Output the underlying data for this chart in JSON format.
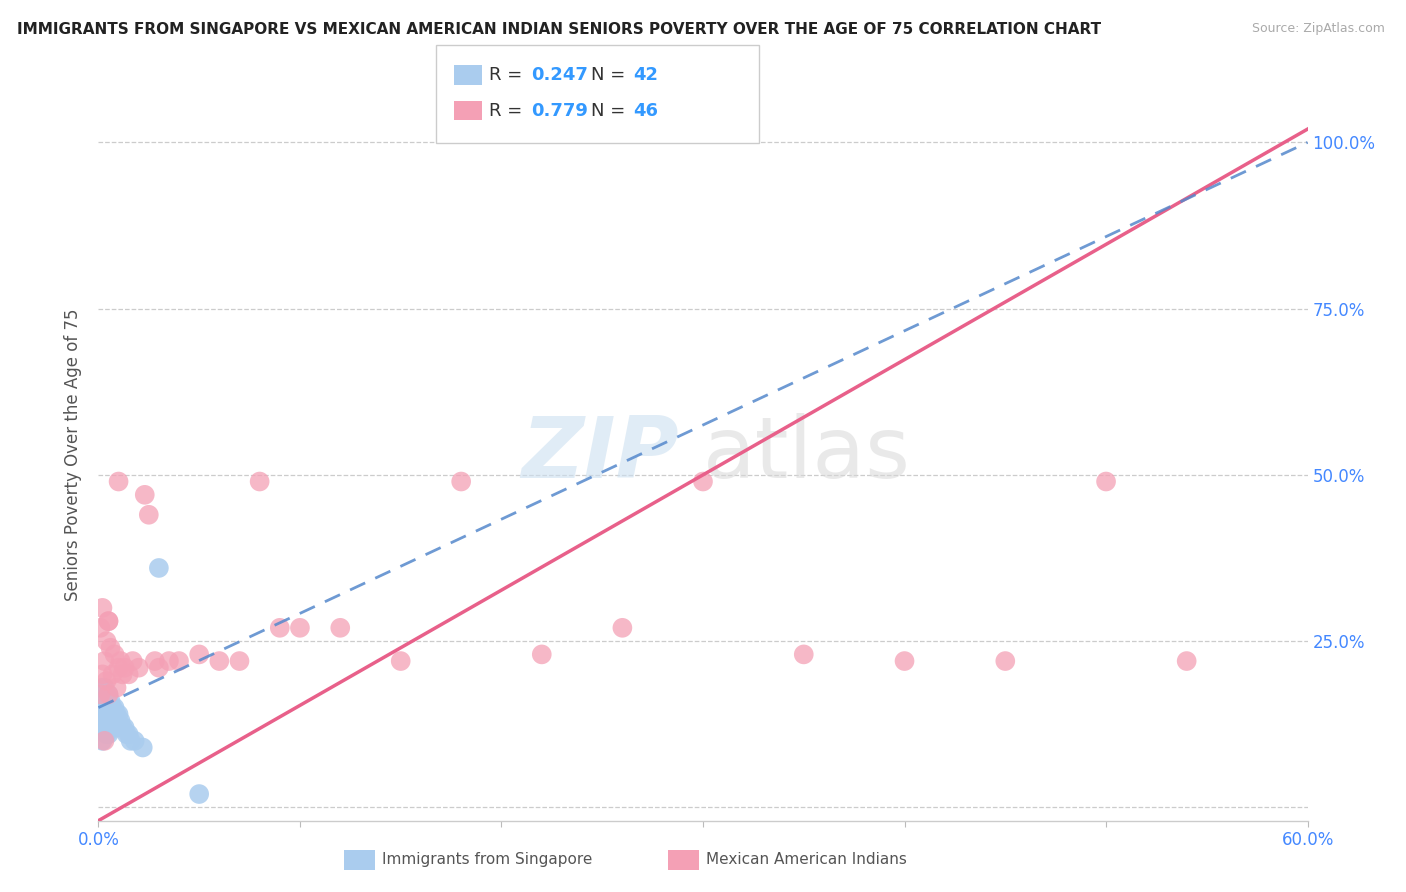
{
  "title": "IMMIGRANTS FROM SINGAPORE VS MEXICAN AMERICAN INDIAN SENIORS POVERTY OVER THE AGE OF 75 CORRELATION CHART",
  "source": "Source: ZipAtlas.com",
  "ylabel": "Seniors Poverty Over the Age of 75",
  "bg_color": "#ffffff",
  "grid_color": "#cccccc",
  "r_singapore": 0.247,
  "n_singapore": 42,
  "r_mexican": 0.779,
  "n_mexican": 46,
  "xlim": [
    0.0,
    0.6
  ],
  "ylim": [
    -0.02,
    1.08
  ],
  "yticks": [
    0.0,
    0.25,
    0.5,
    0.75,
    1.0
  ],
  "ytick_labels": [
    "",
    "25.0%",
    "50.0%",
    "75.0%",
    "100.0%"
  ],
  "xticks": [
    0.0,
    0.1,
    0.2,
    0.3,
    0.4,
    0.5,
    0.6
  ],
  "xtick_labels": [
    "0.0%",
    "",
    "",
    "",
    "",
    "",
    "60.0%"
  ],
  "singapore_color": "#aaccee",
  "mexican_color": "#f4a0b5",
  "singapore_line_color": "#5588cc",
  "mexican_line_color": "#e8608a",
  "legend_r_color": "#3399ff",
  "legend_n_color": "#3399ff",
  "mexican_r_color": "#3399ff",
  "mexican_n_color": "#3399ff",
  "singapore_x": [
    0.001,
    0.001,
    0.001,
    0.001,
    0.002,
    0.002,
    0.002,
    0.002,
    0.002,
    0.003,
    0.003,
    0.003,
    0.003,
    0.004,
    0.004,
    0.004,
    0.004,
    0.005,
    0.005,
    0.005,
    0.005,
    0.006,
    0.006,
    0.006,
    0.007,
    0.007,
    0.008,
    0.008,
    0.009,
    0.009,
    0.01,
    0.01,
    0.011,
    0.012,
    0.013,
    0.014,
    0.015,
    0.016,
    0.018,
    0.022,
    0.03,
    0.05
  ],
  "singapore_y": [
    0.17,
    0.15,
    0.14,
    0.12,
    0.18,
    0.16,
    0.14,
    0.12,
    0.1,
    0.18,
    0.16,
    0.14,
    0.12,
    0.17,
    0.15,
    0.13,
    0.11,
    0.17,
    0.15,
    0.13,
    0.11,
    0.16,
    0.14,
    0.12,
    0.15,
    0.13,
    0.15,
    0.13,
    0.14,
    0.12,
    0.14,
    0.12,
    0.13,
    0.12,
    0.12,
    0.11,
    0.11,
    0.1,
    0.1,
    0.09,
    0.36,
    0.02
  ],
  "mexican_x": [
    0.001,
    0.001,
    0.002,
    0.002,
    0.003,
    0.003,
    0.004,
    0.004,
    0.005,
    0.005,
    0.006,
    0.007,
    0.008,
    0.009,
    0.01,
    0.011,
    0.012,
    0.013,
    0.015,
    0.017,
    0.02,
    0.023,
    0.025,
    0.028,
    0.03,
    0.035,
    0.04,
    0.05,
    0.06,
    0.07,
    0.08,
    0.09,
    0.1,
    0.12,
    0.15,
    0.18,
    0.22,
    0.26,
    0.3,
    0.35,
    0.4,
    0.45,
    0.5,
    0.54,
    0.01,
    0.005
  ],
  "mexican_y": [
    0.17,
    0.27,
    0.2,
    0.3,
    0.22,
    0.1,
    0.19,
    0.25,
    0.17,
    0.28,
    0.24,
    0.2,
    0.23,
    0.18,
    0.21,
    0.22,
    0.2,
    0.21,
    0.2,
    0.22,
    0.21,
    0.47,
    0.44,
    0.22,
    0.21,
    0.22,
    0.22,
    0.23,
    0.22,
    0.22,
    0.49,
    0.27,
    0.27,
    0.27,
    0.22,
    0.49,
    0.23,
    0.27,
    0.49,
    0.23,
    0.22,
    0.22,
    0.49,
    0.22,
    0.49,
    0.28
  ],
  "mx_line_x0": 0.0,
  "mx_line_y0": -0.02,
  "mx_line_x1": 0.6,
  "mx_line_y1": 1.02,
  "sg_line_x0": 0.0,
  "sg_line_y0": 0.15,
  "sg_line_x1": 0.6,
  "sg_line_y1": 1.0
}
